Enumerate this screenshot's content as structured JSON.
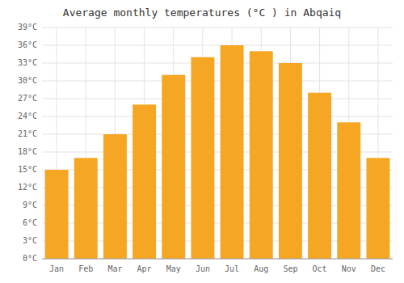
{
  "chart_data": {
    "type": "bar",
    "title": "Average monthly temperatures (°C ) in Abqaiq",
    "categories": [
      "Jan",
      "Feb",
      "Mar",
      "Apr",
      "May",
      "Jun",
      "Jul",
      "Aug",
      "Sep",
      "Oct",
      "Nov",
      "Dec"
    ],
    "values": [
      15,
      17,
      21,
      26,
      31,
      34,
      36,
      35,
      33,
      28,
      23,
      17
    ],
    "color": "#F5A623",
    "ylim": [
      0,
      39
    ],
    "yticks": [
      {
        "value": 0,
        "label": "0°C"
      },
      {
        "value": 3,
        "label": "3°C"
      },
      {
        "value": 6,
        "label": "6°C"
      },
      {
        "value": 9,
        "label": "9°C"
      },
      {
        "value": 12,
        "label": "12°C"
      },
      {
        "value": 15,
        "label": "15°C"
      },
      {
        "value": 18,
        "label": "18°C"
      },
      {
        "value": 21,
        "label": "21°C"
      },
      {
        "value": 24,
        "label": "24°C"
      },
      {
        "value": 27,
        "label": "27°C"
      },
      {
        "value": 30,
        "label": "30°C"
      },
      {
        "value": 33,
        "label": "33°C"
      },
      {
        "value": 36,
        "label": "36°C"
      },
      {
        "value": 39,
        "label": "39°C"
      }
    ],
    "grid": true
  }
}
